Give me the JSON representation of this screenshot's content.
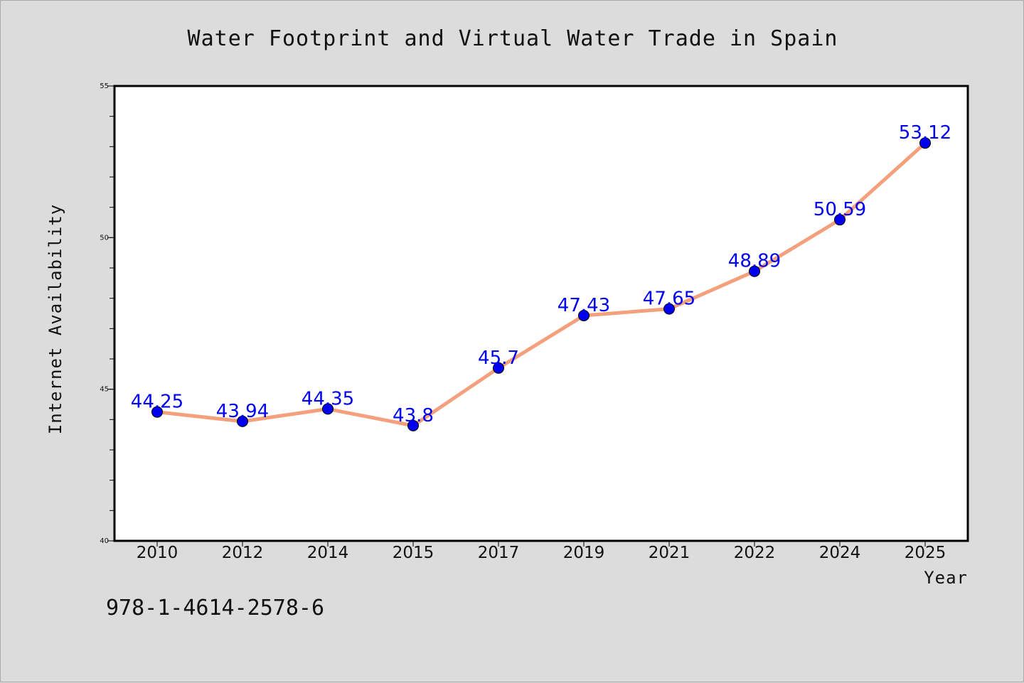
{
  "chart_data": {
    "type": "line",
    "title": "Water Footprint and Virtual Water Trade in Spain",
    "xlabel": "Year",
    "ylabel": "Internet Availability",
    "categories": [
      "2010",
      "2012",
      "2014",
      "2015",
      "2017",
      "2019",
      "2021",
      "2022",
      "2024",
      "2025"
    ],
    "series": [
      {
        "values": [
          44.25,
          43.94,
          44.35,
          43.8,
          45.7,
          47.43,
          47.65,
          48.89,
          50.59,
          53.12
        ],
        "data_labels": [
          "44.25",
          "43.94",
          "44.35",
          "43.8",
          "45.7",
          "47.43",
          "47.65",
          "48.89",
          "50.59",
          "53.12"
        ],
        "line_color": "#f4a07c",
        "marker_color": "#0000ee"
      }
    ],
    "ylim": [
      40,
      55
    ],
    "y_ticks": [
      40,
      45,
      50,
      55
    ],
    "y_tick_labels": [
      "40",
      "45",
      "50",
      "55"
    ],
    "grid": false,
    "legend": "none"
  },
  "footer_text": "978-1-4614-2578-6"
}
